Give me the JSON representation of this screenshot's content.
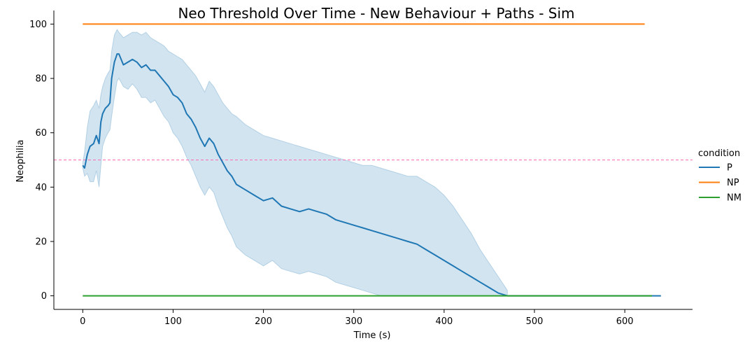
{
  "chart_data": {
    "type": "line",
    "title": "Neo Threshold Over Time - New Behaviour + Paths - Sim",
    "xlabel": "Time (s)",
    "ylabel": "Neophilia",
    "xlim": [
      -32,
      675
    ],
    "ylim": [
      -5,
      105
    ],
    "xticks": [
      0,
      100,
      200,
      300,
      400,
      500,
      600
    ],
    "yticks": [
      0,
      20,
      40,
      60,
      80,
      100
    ],
    "grid": false,
    "legend": {
      "title": "condition",
      "position": "right",
      "entries": [
        "P",
        "NP",
        "NM"
      ]
    },
    "threshold": {
      "y": 50,
      "style": "dashed",
      "color": "#ff69b4"
    },
    "colors": {
      "P": "#1f77b4",
      "NP": "#ff7f0e",
      "NM": "#2ca02c",
      "band": "#1f77b4"
    },
    "series": [
      {
        "name": "P",
        "x": [
          0,
          2,
          5,
          8,
          12,
          15,
          18,
          20,
          22,
          25,
          28,
          30,
          32,
          35,
          38,
          40,
          45,
          50,
          55,
          60,
          65,
          70,
          75,
          80,
          85,
          90,
          95,
          100,
          105,
          110,
          115,
          120,
          125,
          130,
          135,
          140,
          145,
          150,
          155,
          160,
          165,
          170,
          180,
          190,
          200,
          210,
          220,
          230,
          240,
          250,
          260,
          270,
          280,
          290,
          300,
          310,
          320,
          330,
          340,
          350,
          360,
          370,
          380,
          390,
          400,
          410,
          420,
          430,
          440,
          450,
          460,
          470,
          500,
          550,
          600,
          640
        ],
        "y": [
          48,
          47,
          52,
          55,
          56,
          59,
          56,
          64,
          67,
          69,
          70,
          71,
          80,
          86,
          89,
          89,
          85,
          86,
          87,
          86,
          84,
          85,
          83,
          83,
          81,
          79,
          77,
          74,
          73,
          71,
          67,
          65,
          62,
          58,
          55,
          58,
          56,
          52,
          49,
          46,
          44,
          41,
          39,
          37,
          35,
          36,
          33,
          32,
          31,
          32,
          31,
          30,
          28,
          27,
          26,
          25,
          24,
          23,
          22,
          21,
          20,
          19,
          17,
          15,
          13,
          11,
          9,
          7,
          5,
          3,
          1,
          0,
          0,
          0,
          0,
          0
        ]
      },
      {
        "name": "NP",
        "x": [
          0,
          622
        ],
        "y": [
          100,
          100
        ]
      },
      {
        "name": "NM",
        "x": [
          0,
          630
        ],
        "y": [
          0,
          0
        ]
      }
    ],
    "band": {
      "x": [
        0,
        2,
        5,
        8,
        12,
        15,
        18,
        20,
        22,
        25,
        28,
        30,
        32,
        35,
        38,
        40,
        45,
        50,
        55,
        60,
        65,
        70,
        75,
        80,
        85,
        90,
        95,
        100,
        105,
        110,
        115,
        120,
        125,
        130,
        135,
        140,
        145,
        150,
        155,
        160,
        165,
        170,
        180,
        190,
        200,
        210,
        220,
        230,
        240,
        250,
        260,
        270,
        280,
        290,
        300,
        310,
        320,
        330,
        340,
        350,
        360,
        370,
        380,
        390,
        400,
        410,
        420,
        430,
        440,
        450,
        460,
        470
      ],
      "upper": [
        49,
        53,
        62,
        68,
        70,
        72,
        69,
        74,
        77,
        80,
        82,
        83,
        90,
        96,
        98,
        97,
        95,
        96,
        97,
        97,
        96,
        97,
        95,
        94,
        93,
        92,
        90,
        89,
        88,
        87,
        85,
        83,
        81,
        78,
        75,
        79,
        77,
        74,
        71,
        69,
        67,
        66,
        63,
        61,
        59,
        58,
        57,
        56,
        55,
        54,
        53,
        52,
        51,
        50,
        49,
        48,
        48,
        47,
        46,
        45,
        44,
        44,
        42,
        40,
        37,
        33,
        28,
        23,
        17,
        12,
        7,
        2
      ],
      "lower": [
        47,
        44,
        45,
        42,
        42,
        46,
        40,
        48,
        55,
        58,
        60,
        61,
        66,
        73,
        79,
        80,
        77,
        76,
        78,
        76,
        73,
        73,
        71,
        72,
        69,
        66,
        64,
        60,
        58,
        55,
        51,
        48,
        44,
        40,
        37,
        40,
        38,
        33,
        29,
        25,
        22,
        18,
        15,
        13,
        11,
        13,
        10,
        9,
        8,
        9,
        8,
        7,
        5,
        4,
        3,
        2,
        1,
        0,
        0,
        0,
        0,
        0,
        0,
        0,
        0,
        0,
        0,
        0,
        0,
        0,
        0,
        0
      ]
    }
  }
}
